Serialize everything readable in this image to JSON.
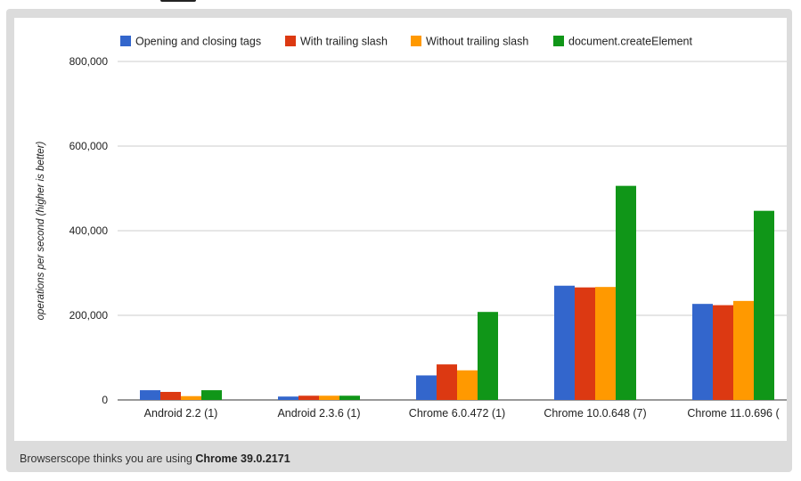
{
  "footer": {
    "text_prefix": "Browserscope thinks you are using",
    "browser": "Chrome 39.0.2171"
  },
  "colors": {
    "series": [
      "#3366cc",
      "#dc3912",
      "#ff9900",
      "#109618"
    ],
    "gridline": "#cccccc",
    "axis": "#333333",
    "frame": "#dcdcdc"
  },
  "chart_data": {
    "type": "bar",
    "title": "",
    "xlabel": "",
    "ylabel": "operations per second (higher is better)",
    "ylim": [
      0,
      800000
    ],
    "yticks": [
      "0",
      "200,000",
      "400,000",
      "600,000",
      "800,000"
    ],
    "grid": true,
    "legend_position": "top",
    "categories": [
      "Android 2.2 (1)",
      "Android 2.3.6 (1)",
      "Chrome 6.0.472 (1)",
      "Chrome 10.0.648 (7)",
      "Chrome 11.0.696 ("
    ],
    "series": [
      {
        "name": "Opening and closing tags",
        "values": [
          23000,
          8000,
          58000,
          270000,
          227000
        ]
      },
      {
        "name": "With trailing slash",
        "values": [
          19000,
          10000,
          84000,
          266000,
          224000
        ]
      },
      {
        "name": "Without trailing slash",
        "values": [
          9000,
          10000,
          70000,
          267000,
          234000
        ]
      },
      {
        "name": "document.createElement",
        "values": [
          23000,
          10000,
          208000,
          506000,
          447000
        ]
      }
    ]
  }
}
